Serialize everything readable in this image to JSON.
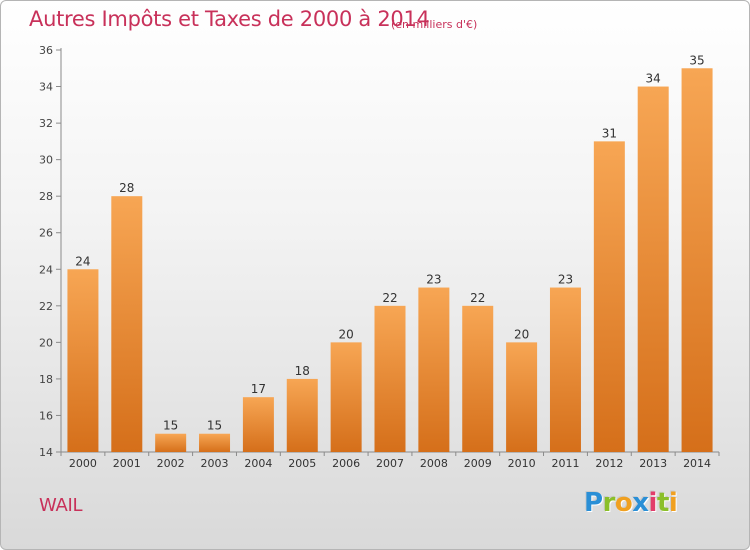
{
  "chart_data": {
    "type": "bar",
    "title": "Autres Impôts et Taxes de 2000 à 2014",
    "unit_note": "(en milliers d'€)",
    "categories": [
      "2000",
      "2001",
      "2002",
      "2003",
      "2004",
      "2005",
      "2006",
      "2007",
      "2008",
      "2009",
      "2010",
      "2011",
      "2012",
      "2013",
      "2014"
    ],
    "values": [
      24,
      28,
      15,
      15,
      17,
      18,
      20,
      22,
      23,
      22,
      20,
      23,
      31,
      34,
      35
    ],
    "ylim": [
      14,
      36
    ],
    "yticks": [
      14,
      16,
      18,
      20,
      22,
      24,
      26,
      28,
      30,
      32,
      34,
      36
    ],
    "xlabel": "",
    "ylabel": "",
    "grid": false,
    "bar_color_light": "#f7a654",
    "bar_color_dark": "#d56f1a"
  },
  "location": "WAIL",
  "brand": {
    "name": "Proxiti",
    "letters": [
      {
        "ch": "P",
        "color": "#2a8fd6"
      },
      {
        "ch": "r",
        "color": "#8bbf2a"
      },
      {
        "ch": "o",
        "color": "#f0a020"
      },
      {
        "ch": "x",
        "color": "#2a8fd6"
      },
      {
        "ch": "i",
        "color": "#e23c6a"
      },
      {
        "ch": "t",
        "color": "#8bbf2a"
      },
      {
        "ch": "i",
        "color": "#f0a020"
      }
    ]
  }
}
